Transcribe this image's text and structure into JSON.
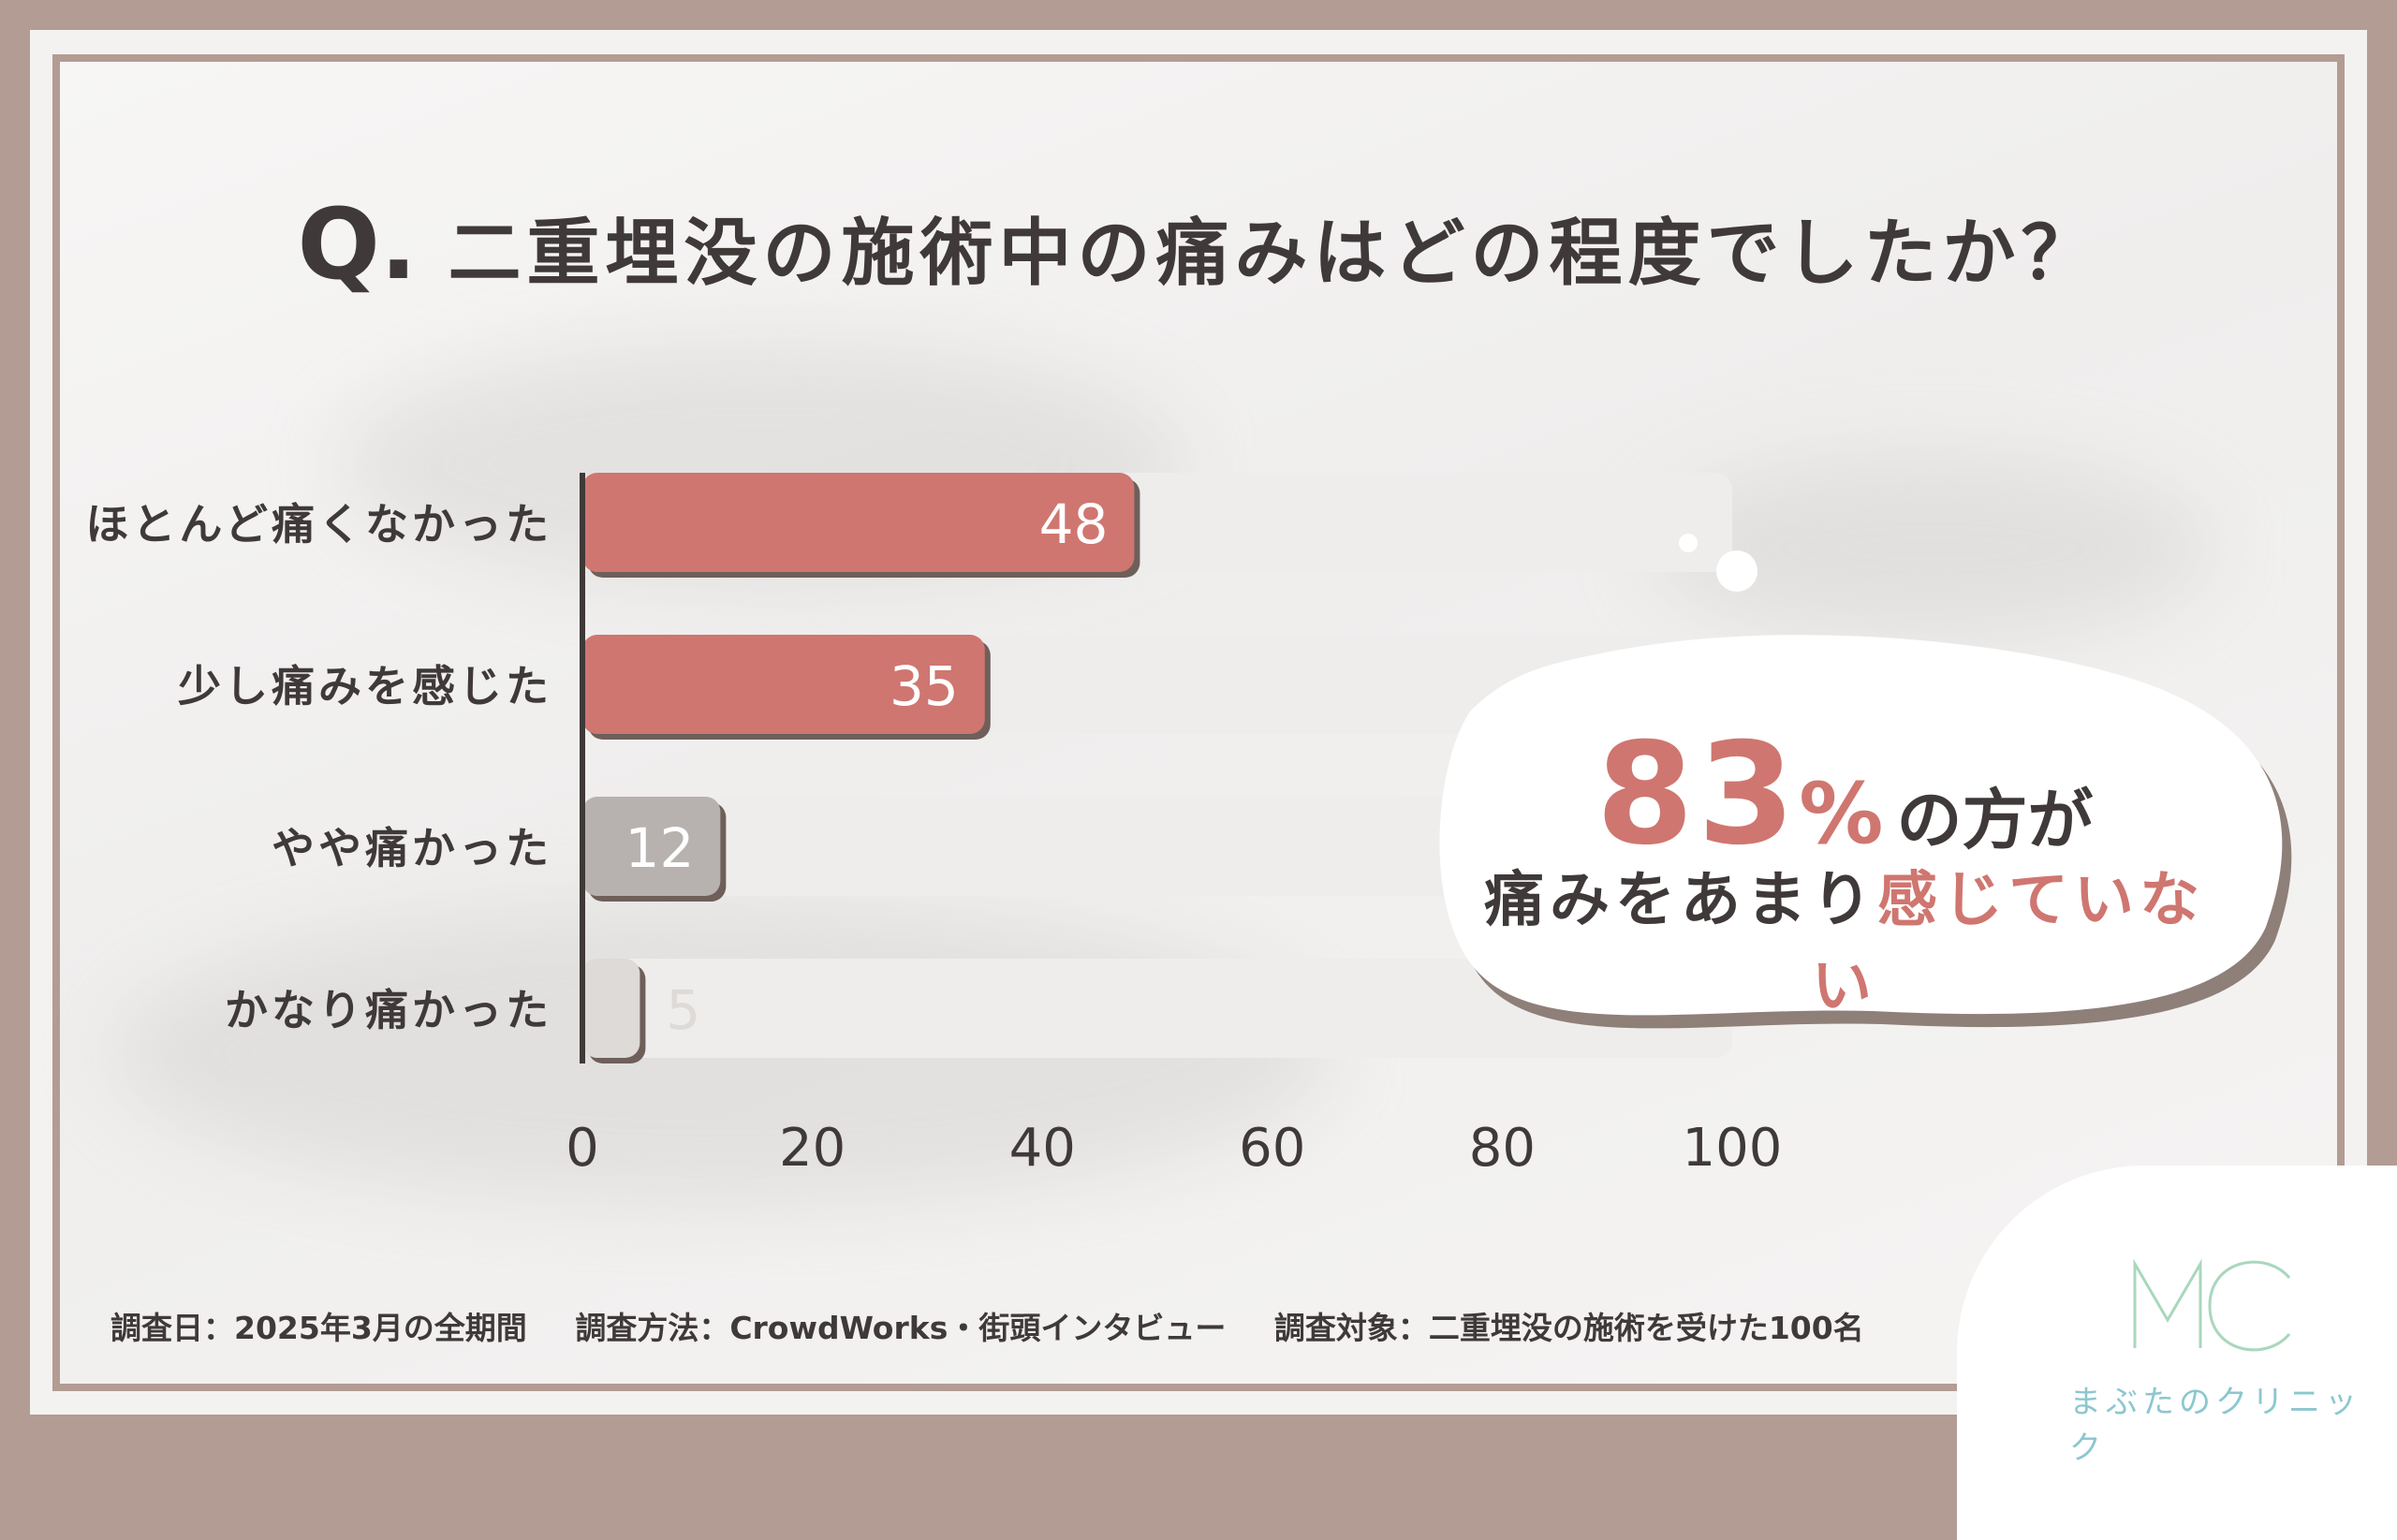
{
  "title": {
    "q": "Q.",
    "text": "二重埋没の施術中の痛みはどの程度でしたか？"
  },
  "chart_data": {
    "type": "bar",
    "orientation": "horizontal",
    "categories": [
      "ほとんど痛くなかった",
      "少し痛みを感じた",
      "やや痛かった",
      "かなり痛かった"
    ],
    "values": [
      48,
      35,
      12,
      5
    ],
    "value_labels": [
      "48",
      "35",
      "12",
      "5"
    ],
    "xlim": [
      0,
      100
    ],
    "xticks": [
      "0",
      "20",
      "40",
      "60",
      "80",
      "100"
    ],
    "colors": [
      "#cf7670",
      "#cf7670",
      "#b7b2b0",
      "#dddad8"
    ],
    "track_color": "#efedec",
    "grid": false
  },
  "callout": {
    "big": "83",
    "pct": "%",
    "line1_rest": "の方が",
    "line2_a": "痛みをあまり",
    "line2_b": "感じていない"
  },
  "footer": {
    "date": "調査日：2025年3月の全期間",
    "method": "調査方法：CrowdWorks・街頭インタビュー",
    "target": "調査対象：二重埋没の施術を受けた100名"
  },
  "logo": {
    "mark": "MC",
    "name": "まぶたのクリニック"
  }
}
